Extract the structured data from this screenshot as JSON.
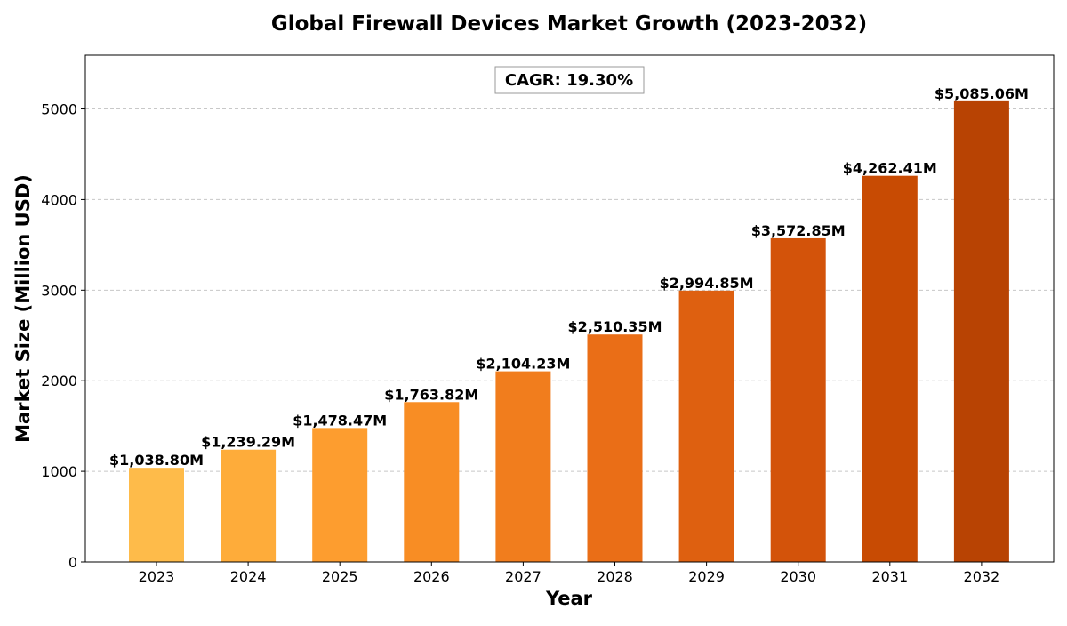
{
  "chart_data": {
    "type": "bar",
    "title": "Global Firewall Devices Market Growth (2023-2032)",
    "xlabel": "Year",
    "ylabel": "Market Size (Million USD)",
    "categories": [
      "2023",
      "2024",
      "2025",
      "2026",
      "2027",
      "2028",
      "2029",
      "2030",
      "2031",
      "2032"
    ],
    "values": [
      1038.8,
      1239.29,
      1478.47,
      1763.82,
      2104.23,
      2510.35,
      2994.85,
      3572.85,
      4262.41,
      5085.06
    ],
    "data_labels": [
      "$1,038.80M",
      "$1,239.29M",
      "$1,478.47M",
      "$1,763.82M",
      "$2,104.23M",
      "$2,510.35M",
      "$2,994.85M",
      "$3,572.85M",
      "$4,262.41M",
      "$5,085.06M"
    ],
    "bar_colors": [
      "#febb4a",
      "#feac3a",
      "#fd9d2f",
      "#f88d24",
      "#f17d1d",
      "#ea6e17",
      "#de6010",
      "#d3530a",
      "#c84b03",
      "#b84303"
    ],
    "yticks": [
      0,
      1000,
      2000,
      3000,
      4000,
      5000
    ],
    "ylim": [
      0,
      5594
    ],
    "grid": "y-dashed",
    "annotation": "CAGR: 19.30%"
  }
}
